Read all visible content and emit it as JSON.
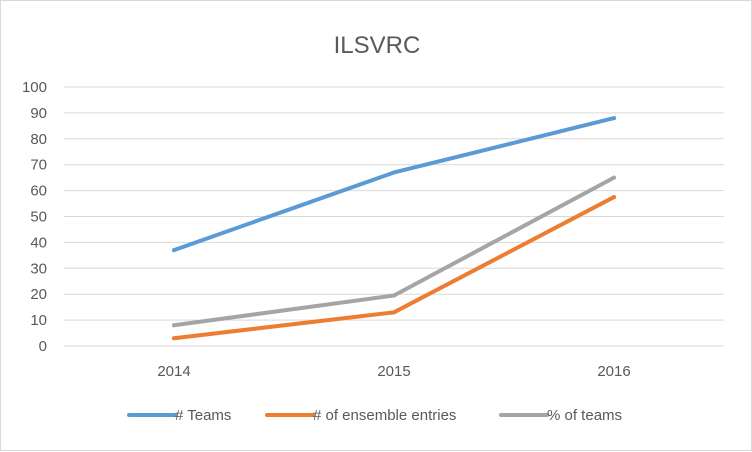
{
  "chart_data": {
    "type": "line",
    "title": "ILSVRC",
    "xlabel": "",
    "ylabel": "",
    "categories": [
      "2014",
      "2015",
      "2016"
    ],
    "ylim": [
      0,
      100
    ],
    "yticks": [
      "0",
      "10",
      "20",
      "30",
      "40",
      "50",
      "60",
      "70",
      "80",
      "90",
      "100"
    ],
    "grid": true,
    "legend_position": "bottom",
    "series": [
      {
        "name": "# Teams",
        "color": "#5b9bd5",
        "values": [
          37,
          67,
          88
        ]
      },
      {
        "name": "# of ensemble entries",
        "color": "#ed7d31",
        "values": [
          3,
          13,
          57.5
        ]
      },
      {
        "name": "% of teams",
        "color": "#a5a5a5",
        "values": [
          8,
          19.5,
          65
        ]
      }
    ]
  }
}
